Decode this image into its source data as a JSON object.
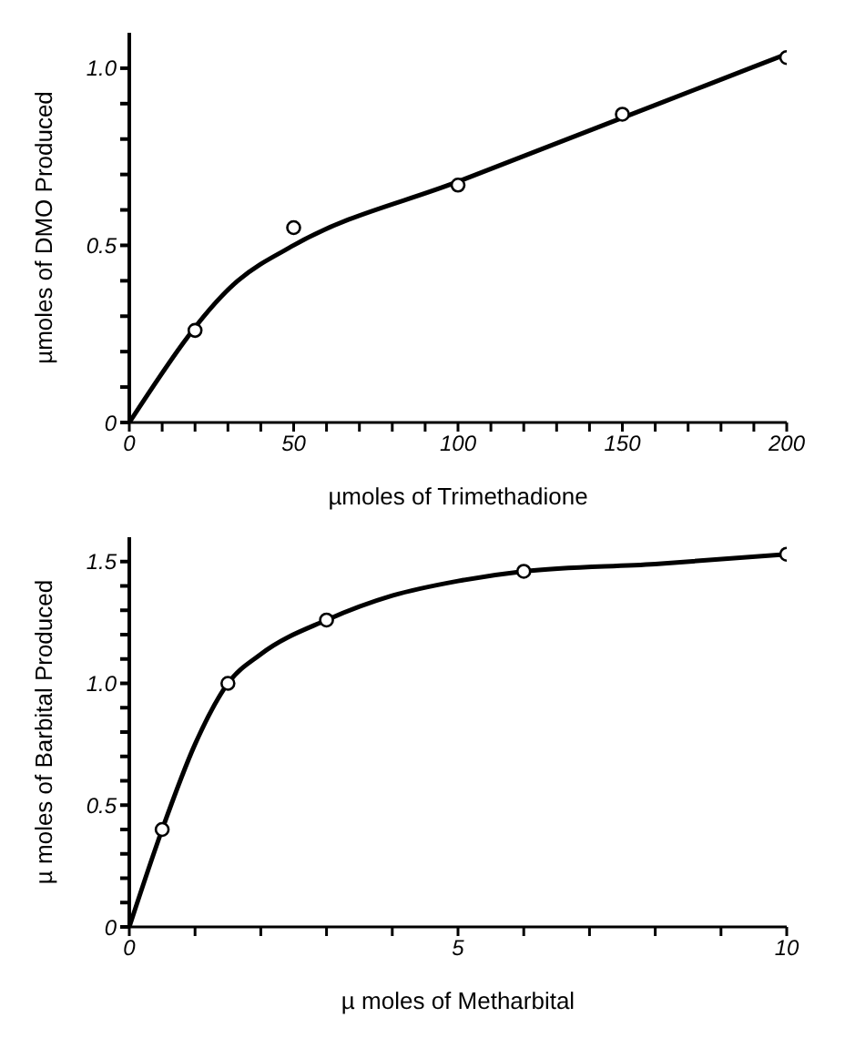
{
  "chart_data": [
    {
      "type": "scatter",
      "xlabel": "µmoles of Trimethadione",
      "ylabel": "µmoles of DMO Produced",
      "xlim": [
        0,
        200
      ],
      "ylim": [
        0,
        1.1
      ],
      "xticks": [
        0,
        {
          "value": 10,
          "label": null
        },
        {
          "value": 20,
          "label": null
        },
        {
          "value": 30,
          "label": null
        },
        {
          "value": 40,
          "label": null
        },
        50,
        {
          "value": 60,
          "label": null
        },
        {
          "value": 70,
          "label": null
        },
        {
          "value": 80,
          "label": null
        },
        {
          "value": 90,
          "label": null
        },
        100,
        {
          "value": 110,
          "label": null
        },
        {
          "value": 120,
          "label": null
        },
        {
          "value": 130,
          "label": null
        },
        {
          "value": 140,
          "label": null
        },
        150,
        {
          "value": 160,
          "label": null
        },
        {
          "value": 170,
          "label": null
        },
        {
          "value": 180,
          "label": null
        },
        {
          "value": 190,
          "label": null
        },
        200
      ],
      "yticks": [
        0,
        {
          "value": 0.1,
          "label": null
        },
        {
          "value": 0.2,
          "label": null
        },
        {
          "value": 0.3,
          "label": null
        },
        {
          "value": 0.4,
          "label": null
        },
        0.5,
        {
          "value": 0.6,
          "label": null
        },
        {
          "value": 0.7,
          "label": null
        },
        {
          "value": 0.8,
          "label": null
        },
        {
          "value": 0.9,
          "label": null
        },
        {
          "value": 1.0,
          "label": "1.0"
        }
      ],
      "series": [
        {
          "color": "#000000",
          "marker": "circle",
          "x": [
            20,
            50,
            100,
            150,
            200
          ],
          "values": [
            0.26,
            0.55,
            0.67,
            0.87,
            1.03
          ]
        },
        {
          "type": "line",
          "color": "#000000",
          "marker": "none",
          "line_style": "solid",
          "x": [
            0,
            33,
            50,
            100,
            150,
            175,
            200
          ],
          "values": [
            0,
            0.4,
            0.5,
            0.68,
            0.86,
            0.95,
            1.04
          ]
        }
      ]
    },
    {
      "type": "scatter",
      "xlabel": "µ moles of Metharbital",
      "ylabel": "µ moles of Barbital Produced",
      "xlim": [
        0,
        10
      ],
      "ylim": [
        0,
        1.6
      ],
      "xticks": [
        0,
        {
          "value": 1,
          "label": null
        },
        {
          "value": 2,
          "label": null
        },
        {
          "value": 3,
          "label": null
        },
        {
          "value": 4,
          "label": null
        },
        5,
        {
          "value": 6,
          "label": null
        },
        {
          "value": 7,
          "label": null
        },
        {
          "value": 8,
          "label": null
        },
        {
          "value": 9,
          "label": null
        },
        10
      ],
      "yticks": [
        0,
        {
          "value": 0.1,
          "label": null
        },
        {
          "value": 0.2,
          "label": null
        },
        {
          "value": 0.3,
          "label": null
        },
        {
          "value": 0.4,
          "label": null
        },
        0.5,
        {
          "value": 0.6,
          "label": null
        },
        {
          "value": 0.7,
          "label": null
        },
        {
          "value": 0.8,
          "label": null
        },
        {
          "value": 0.9,
          "label": null
        },
        {
          "value": 1.0,
          "label": "1.0"
        },
        {
          "value": 1.1,
          "label": null
        },
        {
          "value": 1.2,
          "label": null
        },
        {
          "value": 1.3,
          "label": null
        },
        {
          "value": 1.4,
          "label": null
        },
        1.5
      ],
      "series": [
        {
          "color": "#000000",
          "marker": "circle",
          "x": [
            0.5,
            1.5,
            3,
            6,
            10
          ],
          "values": [
            0.4,
            1.0,
            1.26,
            1.46,
            1.53
          ]
        },
        {
          "type": "line",
          "color": "#000000",
          "marker": "none",
          "line_style": "solid",
          "x": [
            0,
            0.5,
            1,
            1.5,
            2,
            3,
            4,
            5,
            6,
            8,
            10
          ],
          "values": [
            0,
            0.4,
            0.75,
            1.0,
            1.12,
            1.26,
            1.36,
            1.42,
            1.46,
            1.49,
            1.53
          ]
        }
      ]
    }
  ]
}
